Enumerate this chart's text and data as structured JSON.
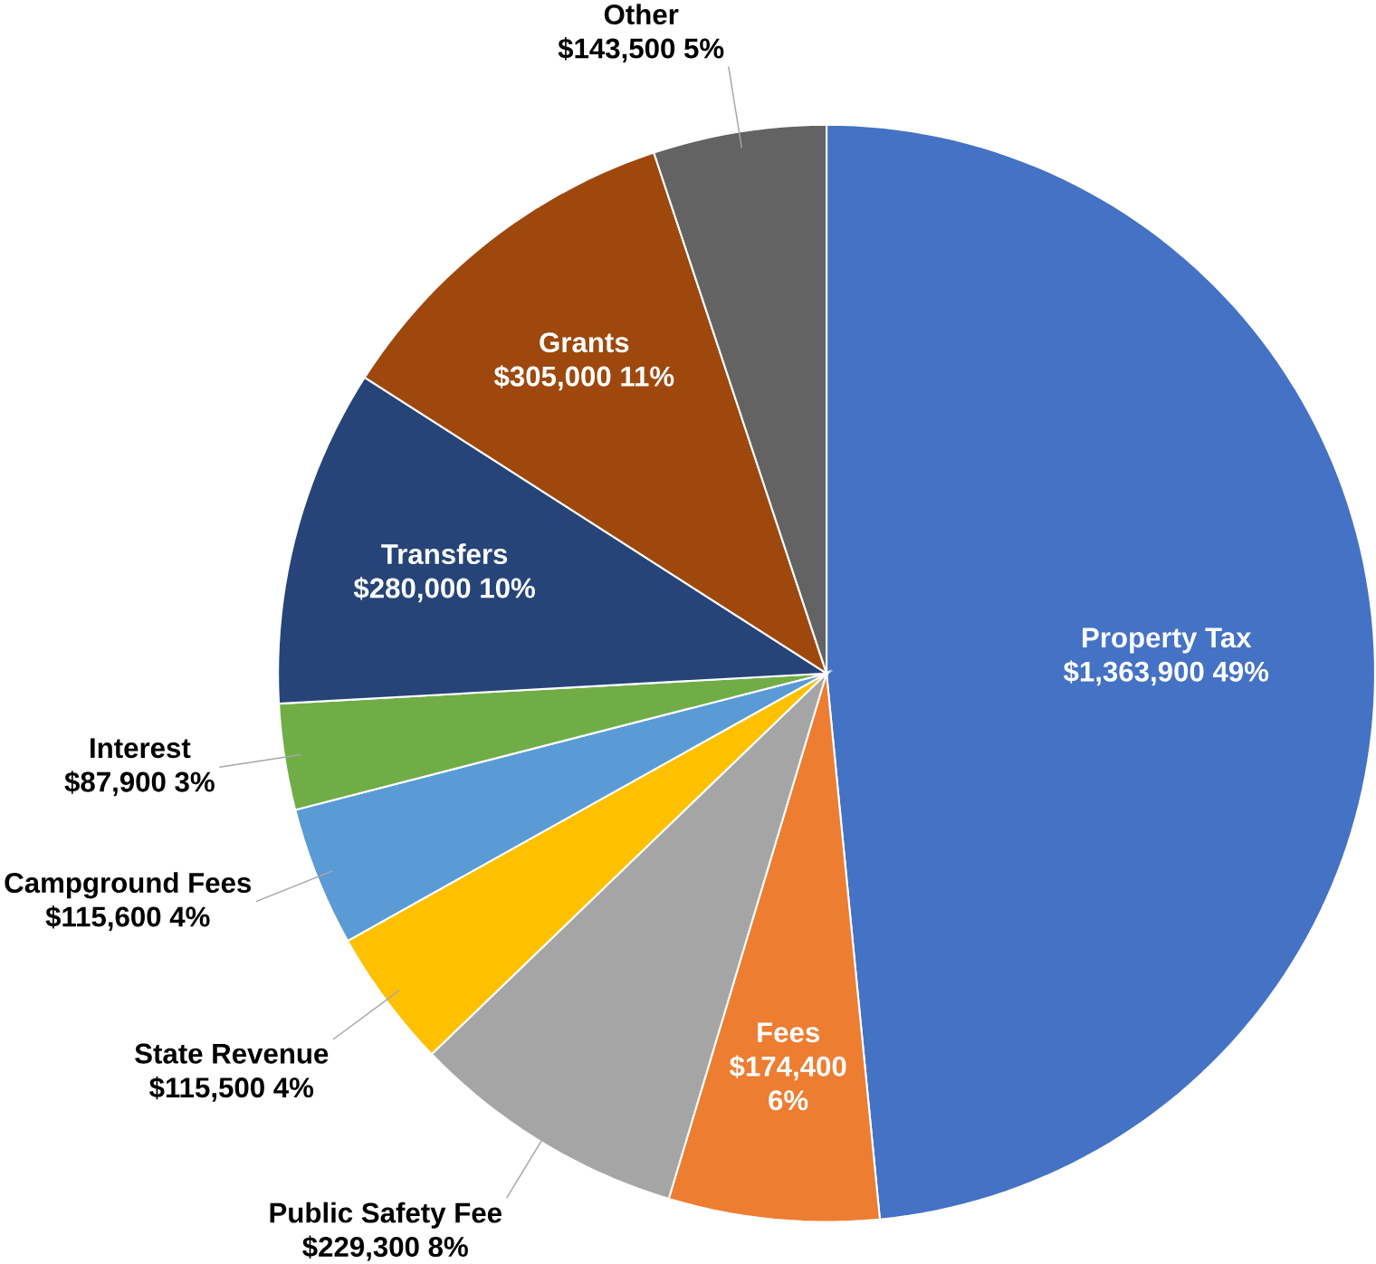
{
  "chart_data": {
    "type": "pie",
    "categories": [
      "Property Tax",
      "Fees",
      "Public Safety Fee",
      "State Revenue",
      "Campground Fees",
      "Interest",
      "Transfers",
      "Grants",
      "Other"
    ],
    "values": [
      1363900,
      174400,
      229300,
      115500,
      115600,
      87900,
      280000,
      305000,
      143500
    ],
    "value_labels": [
      "$1,363,900  49%",
      "$174,400 6%",
      "$229,300  8%",
      "$115,500  4%",
      "$115,600  4%",
      "$87,900  3%",
      "$280,000  10%",
      "$305,000 11%",
      "$143,500  5%"
    ],
    "colors": [
      "#4472c4",
      "#ed7d31",
      "#a5a5a5",
      "#ffc000",
      "#5b9bd5",
      "#70ad47",
      "#264478",
      "#9e480e",
      "#636363"
    ]
  }
}
